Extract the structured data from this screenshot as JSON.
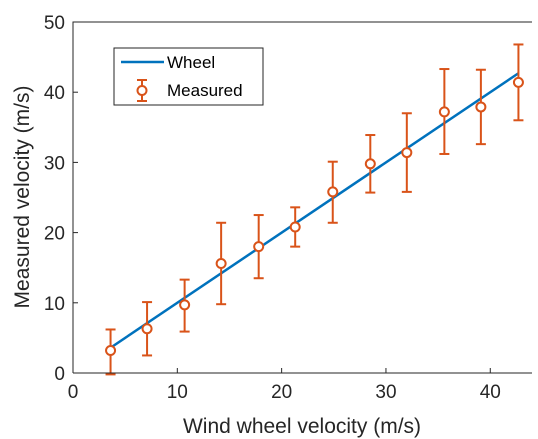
{
  "chart_data": {
    "type": "line",
    "xlabel": "Wind wheel velocity (m/s)",
    "ylabel": "Measured velocity (m/s)",
    "xlim": [
      0,
      44
    ],
    "ylim": [
      0,
      50
    ],
    "xticks": [
      0,
      10,
      20,
      30,
      40
    ],
    "yticks": [
      0,
      10,
      20,
      30,
      40,
      50
    ],
    "grid": false,
    "legend_position": "top-left",
    "series": [
      {
        "name": "Wheel",
        "kind": "line",
        "color": "#0072BD",
        "x": [
          3.6,
          42.7
        ],
        "y": [
          3.6,
          42.7
        ]
      },
      {
        "name": "Measured",
        "kind": "errorbar",
        "color": "#D95319",
        "x": [
          3.6,
          7.1,
          10.7,
          14.2,
          17.8,
          21.3,
          24.9,
          28.5,
          32.0,
          35.6,
          39.1,
          42.7
        ],
        "y": [
          3.2,
          6.3,
          9.7,
          15.6,
          18.0,
          20.8,
          25.8,
          29.8,
          31.4,
          37.2,
          37.9,
          41.4
        ],
        "err_low": [
          3.4,
          3.8,
          3.8,
          5.8,
          4.5,
          2.8,
          4.4,
          4.1,
          5.6,
          6.0,
          5.3,
          5.4
        ],
        "err_high": [
          3.0,
          3.8,
          3.6,
          5.8,
          4.5,
          2.8,
          4.3,
          4.1,
          5.6,
          6.1,
          5.3,
          5.4
        ]
      }
    ]
  }
}
